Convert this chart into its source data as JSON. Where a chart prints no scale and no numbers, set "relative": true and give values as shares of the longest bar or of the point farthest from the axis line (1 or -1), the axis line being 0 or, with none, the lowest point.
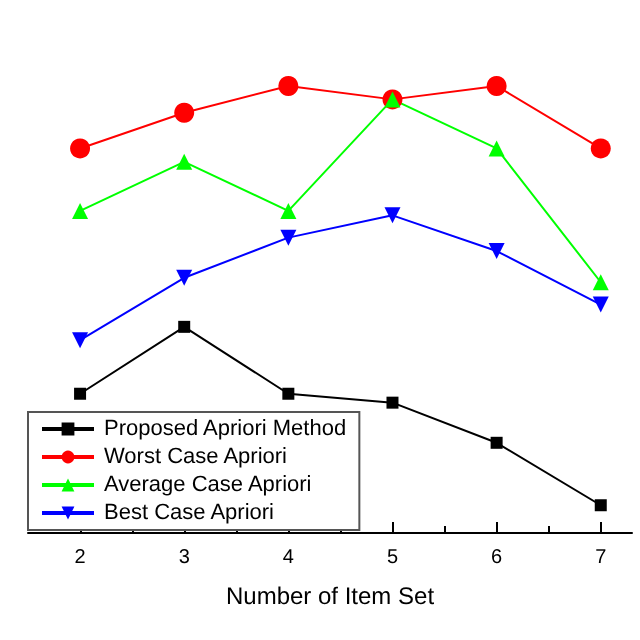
{
  "chart_data": {
    "type": "line",
    "xlabel": "Number of Item Set",
    "x": [
      2,
      3,
      4,
      5,
      6,
      7
    ],
    "xlim": [
      1.5,
      7.3
    ],
    "xticks": [
      2,
      3,
      4,
      5,
      6,
      7
    ],
    "relative": true,
    "grid": false,
    "legend": "bottom left",
    "line_style": "solid",
    "series": [
      {
        "name": "Proposed Apriori Method",
        "color": "#000000",
        "marker": "square",
        "values": [
          0.31,
          0.46,
          0.31,
          0.29,
          0.2,
          0.06
        ]
      },
      {
        "name": "Worst Case Apriori",
        "color": "#ff0000",
        "marker": "circle",
        "values": [
          0.86,
          0.94,
          1,
          0.97,
          1,
          0.86
        ]
      },
      {
        "name": "Average Case Apriori",
        "color": "#00ff00",
        "marker": "triangle",
        "values": [
          0.72,
          0.83,
          0.72,
          0.97,
          0.86,
          0.56
        ]
      },
      {
        "name": "Best Case Apriori",
        "color": "#0000ff",
        "marker": "triangle-down",
        "values": [
          0.43,
          0.57,
          0.66,
          0.71,
          0.63,
          0.51
        ]
      }
    ]
  }
}
